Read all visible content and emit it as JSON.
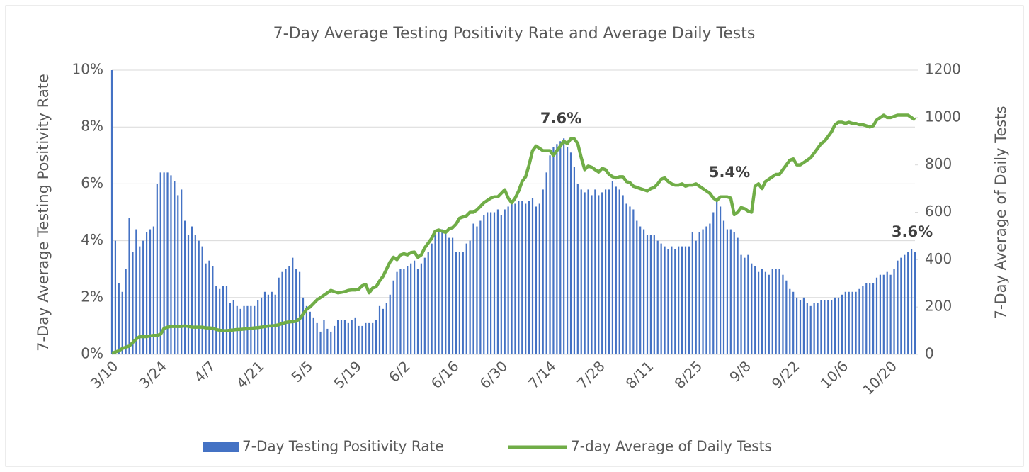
{
  "chart_data": {
    "type": "bar",
    "title": "7-Day Average Testing Positivity Rate and Average Daily Tests",
    "y_label": "7-Day Average Testing Positivity Rate",
    "y2_label": "7-Day Average of Daily Tests",
    "categories": [
      "3/10",
      null,
      null,
      null,
      null,
      null,
      null,
      null,
      null,
      null,
      null,
      null,
      null,
      null,
      "3/24",
      null,
      null,
      null,
      null,
      null,
      null,
      null,
      null,
      null,
      null,
      null,
      null,
      null,
      "4/7",
      null,
      null,
      null,
      null,
      null,
      null,
      null,
      null,
      null,
      null,
      null,
      null,
      null,
      "4/21",
      null,
      null,
      null,
      null,
      null,
      null,
      null,
      null,
      null,
      null,
      null,
      null,
      null,
      "5/5",
      null,
      null,
      null,
      null,
      null,
      null,
      null,
      null,
      null,
      null,
      null,
      null,
      null,
      "5/19",
      null,
      null,
      null,
      null,
      null,
      null,
      null,
      null,
      null,
      null,
      null,
      null,
      null,
      "6/2",
      null,
      null,
      null,
      null,
      null,
      null,
      null,
      null,
      null,
      null,
      null,
      null,
      null,
      "6/16",
      null,
      null,
      null,
      null,
      null,
      null,
      null,
      null,
      null,
      null,
      null,
      null,
      null,
      "6/30",
      null,
      null,
      null,
      null,
      null,
      null,
      null,
      null,
      null,
      null,
      null,
      null,
      null,
      "7/14",
      null,
      null,
      null,
      null,
      null,
      null,
      null,
      null,
      null,
      null,
      null,
      null,
      null,
      "7/28",
      null,
      null,
      null,
      null,
      null,
      null,
      null,
      null,
      null,
      null,
      null,
      null,
      null,
      "8/11",
      null,
      null,
      null,
      null,
      null,
      null,
      null,
      null,
      null,
      null,
      null,
      null,
      null,
      "8/25",
      null,
      null,
      null,
      null,
      null,
      null,
      null,
      null,
      null,
      null,
      null,
      null,
      null,
      "9/8",
      null,
      null,
      null,
      null,
      null,
      null,
      null,
      null,
      null,
      null,
      null,
      null,
      null,
      "9/22",
      null,
      null,
      null,
      null,
      null,
      null,
      null,
      null,
      null,
      null,
      null,
      null,
      null,
      "10/6",
      null,
      null,
      null,
      null,
      null,
      null,
      null,
      null,
      null,
      null,
      null,
      null,
      null,
      "10/20",
      null,
      null,
      null,
      null,
      null,
      null,
      null
    ],
    "series": [
      {
        "name": "7-Day Testing Positivity Rate",
        "type": "bar",
        "color": "#4472c4",
        "values": [
          10,
          4.0,
          2.5,
          2.2,
          3.0,
          4.8,
          3.6,
          4.4,
          3.8,
          4.0,
          4.3,
          4.4,
          4.5,
          6.0,
          6.4,
          6.4,
          6.4,
          6.3,
          6.1,
          5.6,
          5.8,
          4.7,
          4.2,
          4.5,
          4.2,
          4.0,
          3.8,
          3.2,
          3.3,
          3.1,
          2.4,
          2.3,
          2.4,
          2.4,
          1.8,
          1.9,
          1.7,
          1.6,
          1.7,
          1.7,
          1.7,
          1.7,
          1.9,
          2.0,
          2.2,
          2.1,
          2.2,
          2.1,
          2.7,
          2.9,
          3.0,
          3.1,
          3.4,
          3.0,
          2.9,
          2.0,
          1.7,
          1.5,
          1.3,
          1.1,
          0.8,
          1.2,
          0.9,
          0.8,
          1.0,
          1.2,
          1.2,
          1.2,
          1.1,
          1.2,
          1.3,
          1.0,
          1.0,
          1.1,
          1.1,
          1.1,
          1.2,
          1.7,
          1.6,
          1.8,
          2.1,
          2.6,
          2.9,
          3.0,
          3.0,
          3.1,
          3.2,
          3.3,
          3.0,
          3.2,
          3.4,
          3.6,
          3.9,
          4.2,
          4.3,
          4.4,
          4.3,
          4.1,
          4.1,
          3.6,
          3.6,
          3.6,
          3.9,
          4.0,
          4.6,
          4.5,
          4.7,
          4.9,
          5.0,
          5.0,
          5.0,
          5.1,
          4.9,
          5.1,
          5.2,
          5.3,
          5.3,
          5.4,
          5.4,
          5.3,
          5.4,
          5.5,
          5.2,
          5.3,
          5.8,
          6.4,
          7.0,
          7.3,
          7.4,
          7.5,
          7.6,
          7.3,
          7.1,
          6.6,
          6.0,
          5.8,
          5.7,
          5.8,
          5.6,
          5.8,
          5.6,
          5.7,
          5.8,
          5.8,
          6.1,
          5.9,
          5.8,
          5.6,
          5.3,
          5.2,
          5.1,
          4.7,
          4.5,
          4.4,
          4.2,
          4.2,
          4.2,
          4.0,
          3.9,
          3.8,
          3.7,
          3.8,
          3.7,
          3.8,
          3.8,
          3.8,
          3.8,
          4.3,
          4.0,
          4.3,
          4.4,
          4.5,
          4.6,
          5.0,
          5.4,
          5.2,
          4.7,
          4.4,
          4.4,
          4.3,
          4.1,
          3.5,
          3.4,
          3.5,
          3.2,
          3.1,
          2.9,
          3.0,
          2.9,
          2.8,
          3.0,
          3.0,
          3.0,
          2.8,
          2.6,
          2.3,
          2.2,
          2.0,
          1.9,
          2.0,
          1.8,
          1.7,
          1.8,
          1.8,
          1.9,
          1.9,
          1.9,
          1.9,
          2.0,
          2.0,
          2.1,
          2.2,
          2.2,
          2.2,
          2.2,
          2.3,
          2.4,
          2.5,
          2.5,
          2.5,
          2.7,
          2.8,
          2.8,
          2.9,
          2.8,
          3.0,
          3.3,
          3.4,
          3.5,
          3.6,
          3.7,
          3.6
        ]
      },
      {
        "name": "7-day Average of Daily Tests",
        "type": "line",
        "axis": "y2",
        "color": "#70ad47",
        "values": [
          5,
          10,
          15,
          25,
          30,
          35,
          50,
          65,
          75,
          75,
          75,
          78,
          80,
          80,
          85,
          110,
          115,
          118,
          118,
          118,
          118,
          120,
          118,
          115,
          115,
          115,
          115,
          112,
          112,
          110,
          105,
          102,
          100,
          100,
          102,
          103,
          105,
          105,
          107,
          108,
          110,
          112,
          113,
          115,
          117,
          120,
          120,
          122,
          125,
          130,
          135,
          137,
          138,
          140,
          150,
          170,
          190,
          200,
          215,
          230,
          240,
          250,
          260,
          270,
          265,
          260,
          262,
          265,
          270,
          272,
          272,
          275,
          290,
          295,
          260,
          280,
          285,
          310,
          330,
          360,
          390,
          410,
          400,
          420,
          425,
          420,
          430,
          432,
          410,
          420,
          450,
          470,
          490,
          520,
          525,
          520,
          515,
          530,
          535,
          550,
          575,
          580,
          585,
          600,
          600,
          610,
          625,
          640,
          650,
          660,
          665,
          665,
          680,
          695,
          660,
          640,
          660,
          690,
          730,
          750,
          800,
          860,
          880,
          870,
          860,
          860,
          860,
          840,
          860,
          880,
          900,
          890,
          910,
          910,
          890,
          830,
          780,
          795,
          790,
          780,
          770,
          785,
          780,
          760,
          750,
          745,
          750,
          750,
          730,
          725,
          710,
          705,
          700,
          695,
          690,
          700,
          705,
          720,
          740,
          745,
          730,
          720,
          715,
          715,
          720,
          710,
          715,
          715,
          720,
          710,
          700,
          690,
          680,
          660,
          650,
          665,
          665,
          665,
          660,
          590,
          600,
          620,
          615,
          605,
          600,
          710,
          720,
          700,
          730,
          740,
          750,
          760,
          760,
          780,
          800,
          820,
          825,
          800,
          800,
          810,
          820,
          830,
          850,
          870,
          890,
          900,
          920,
          940,
          970,
          980,
          980,
          975,
          980,
          975,
          975,
          970,
          970,
          965,
          960,
          965,
          990,
          1000,
          1010,
          1000,
          1000,
          1005,
          1010,
          1010,
          1010,
          1010,
          1000,
          990
        ]
      }
    ],
    "annotations": [
      "7.6%",
      "5.4%",
      "3.6%"
    ],
    "ylim": [
      0,
      10
    ],
    "yticks": [
      {
        "value": 0,
        "label": "0%"
      },
      {
        "value": 2,
        "label": "2%"
      },
      {
        "value": 4,
        "label": "4%"
      },
      {
        "value": 6,
        "label": "6%"
      },
      {
        "value": 8,
        "label": "8%"
      },
      {
        "value": 10,
        "label": "10%"
      }
    ],
    "y2lim": [
      0,
      1200
    ],
    "y2ticks": [
      0,
      200,
      400,
      600,
      800,
      1000,
      1200
    ],
    "grid": true,
    "legend": "bottom"
  }
}
